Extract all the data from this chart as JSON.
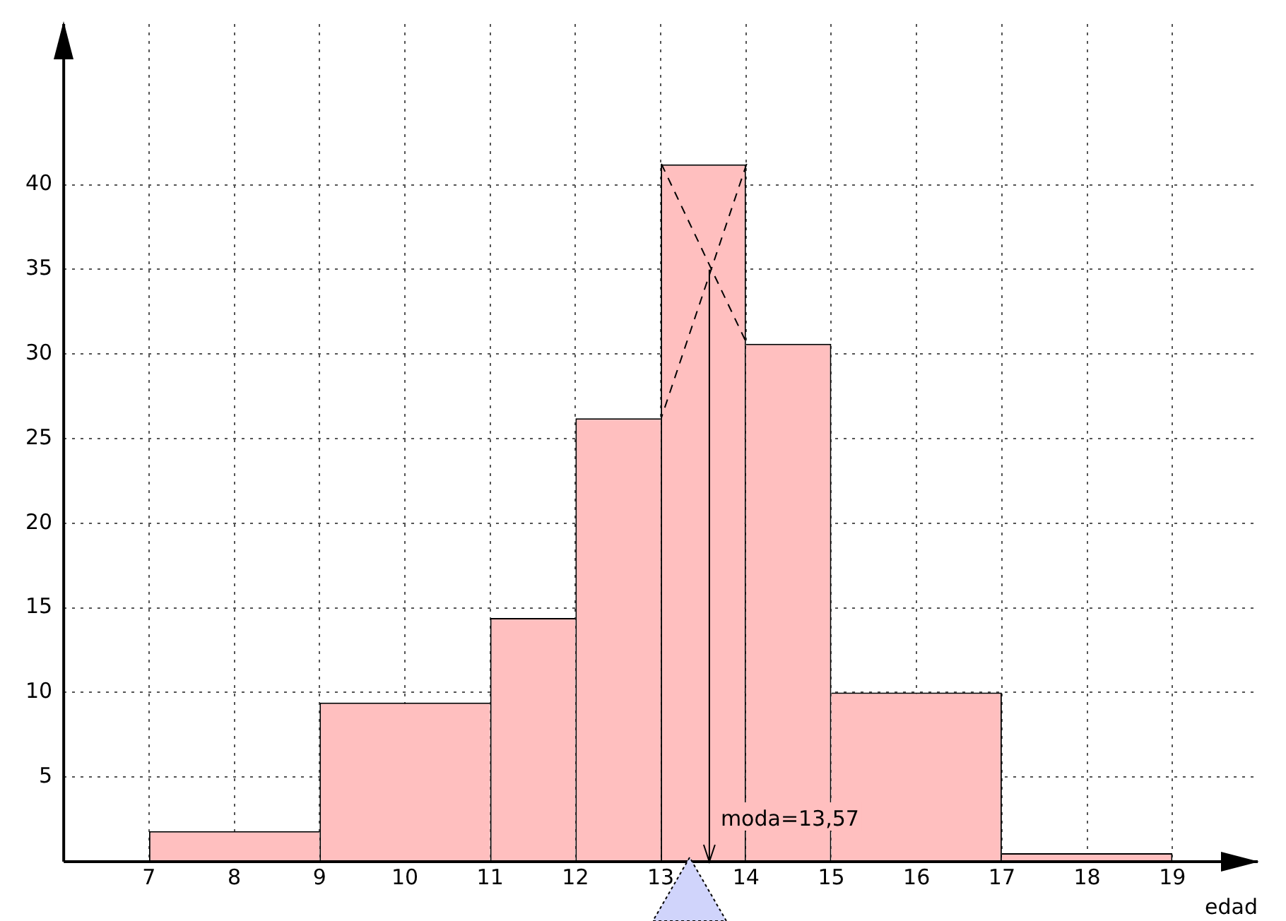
{
  "chart_data": {
    "type": "histogram",
    "xlabel": "edad",
    "bins": [
      7,
      9,
      11,
      12,
      13,
      14,
      15,
      17,
      19
    ],
    "values": [
      1.8,
      9.4,
      14.4,
      26.2,
      41.2,
      30.6,
      10,
      0.5
    ],
    "color": "#ffbfbf",
    "xlim": [
      6,
      20
    ],
    "xticks": [
      7,
      8,
      9,
      10,
      11,
      12,
      13,
      14,
      15,
      16,
      17,
      18,
      19
    ],
    "ylim": [
      0,
      49.5
    ],
    "yticks": [
      5,
      10,
      15,
      20,
      25,
      30,
      35,
      40
    ],
    "grid": true,
    "ref_lines": [
      {
        "axis": "x",
        "value": 13.57,
        "label": "moda=13,57"
      }
    ]
  }
}
